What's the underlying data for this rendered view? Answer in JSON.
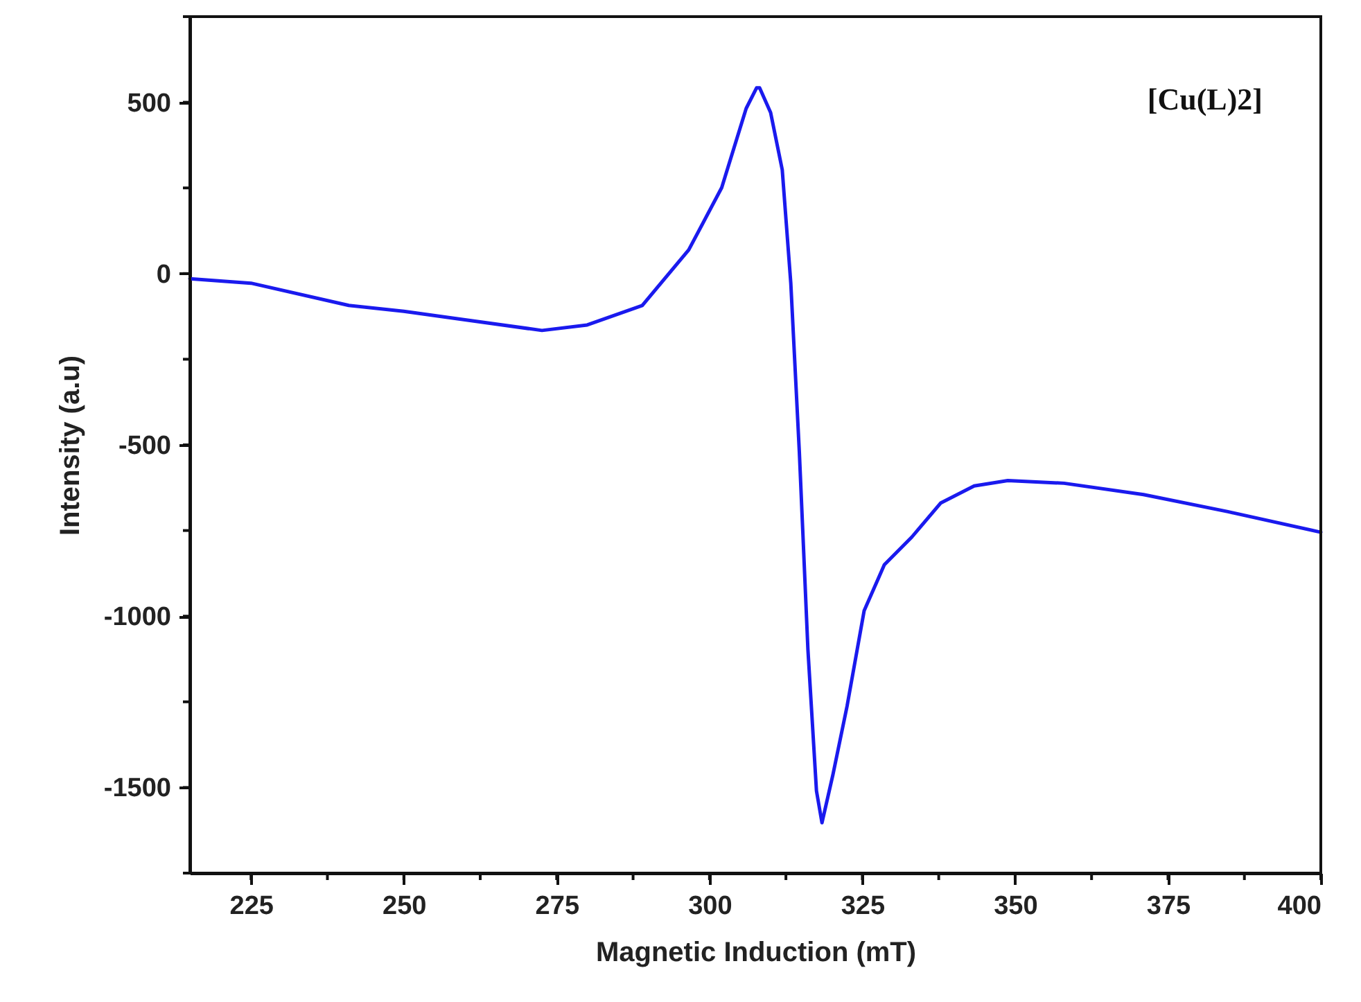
{
  "chart_data": {
    "type": "line",
    "xlabel": "Magnetic Induction (mT)",
    "ylabel": "Intensity (a.u)",
    "annotations": [
      "[Cu(L)2]"
    ],
    "x": [
      215,
      225,
      241,
      250,
      260,
      272.6,
      280,
      289,
      296.6,
      302,
      306,
      307.7,
      308.2,
      310,
      311.9,
      313.3,
      314.7,
      316.1,
      317.5,
      318.4,
      320.2,
      322.5,
      325.3,
      328.6,
      333.1,
      337.8,
      343.3,
      348.8,
      358,
      371,
      384.8,
      400
    ],
    "series": [
      {
        "color": "#1a1aee",
        "values": [
          -15,
          -28,
          -93,
          -110,
          -135,
          -166,
          -150,
          -93,
          69,
          251,
          482,
          542,
          542,
          470,
          303,
          -28,
          -522,
          -1097,
          -1510,
          -1603,
          -1462,
          -1263,
          -984,
          -850,
          -769,
          -670,
          -620,
          -604,
          -612,
          -645,
          -695,
          -755
        ]
      }
    ],
    "xlim": [
      215,
      400
    ],
    "xticks": [
      225,
      250,
      275,
      300,
      325,
      350,
      375,
      400
    ],
    "ylim": [
      -1750,
      750
    ],
    "yticks": [
      -1500,
      -1000,
      -500,
      0,
      500
    ],
    "grid": false,
    "line_style": "solid",
    "marker": "none"
  }
}
